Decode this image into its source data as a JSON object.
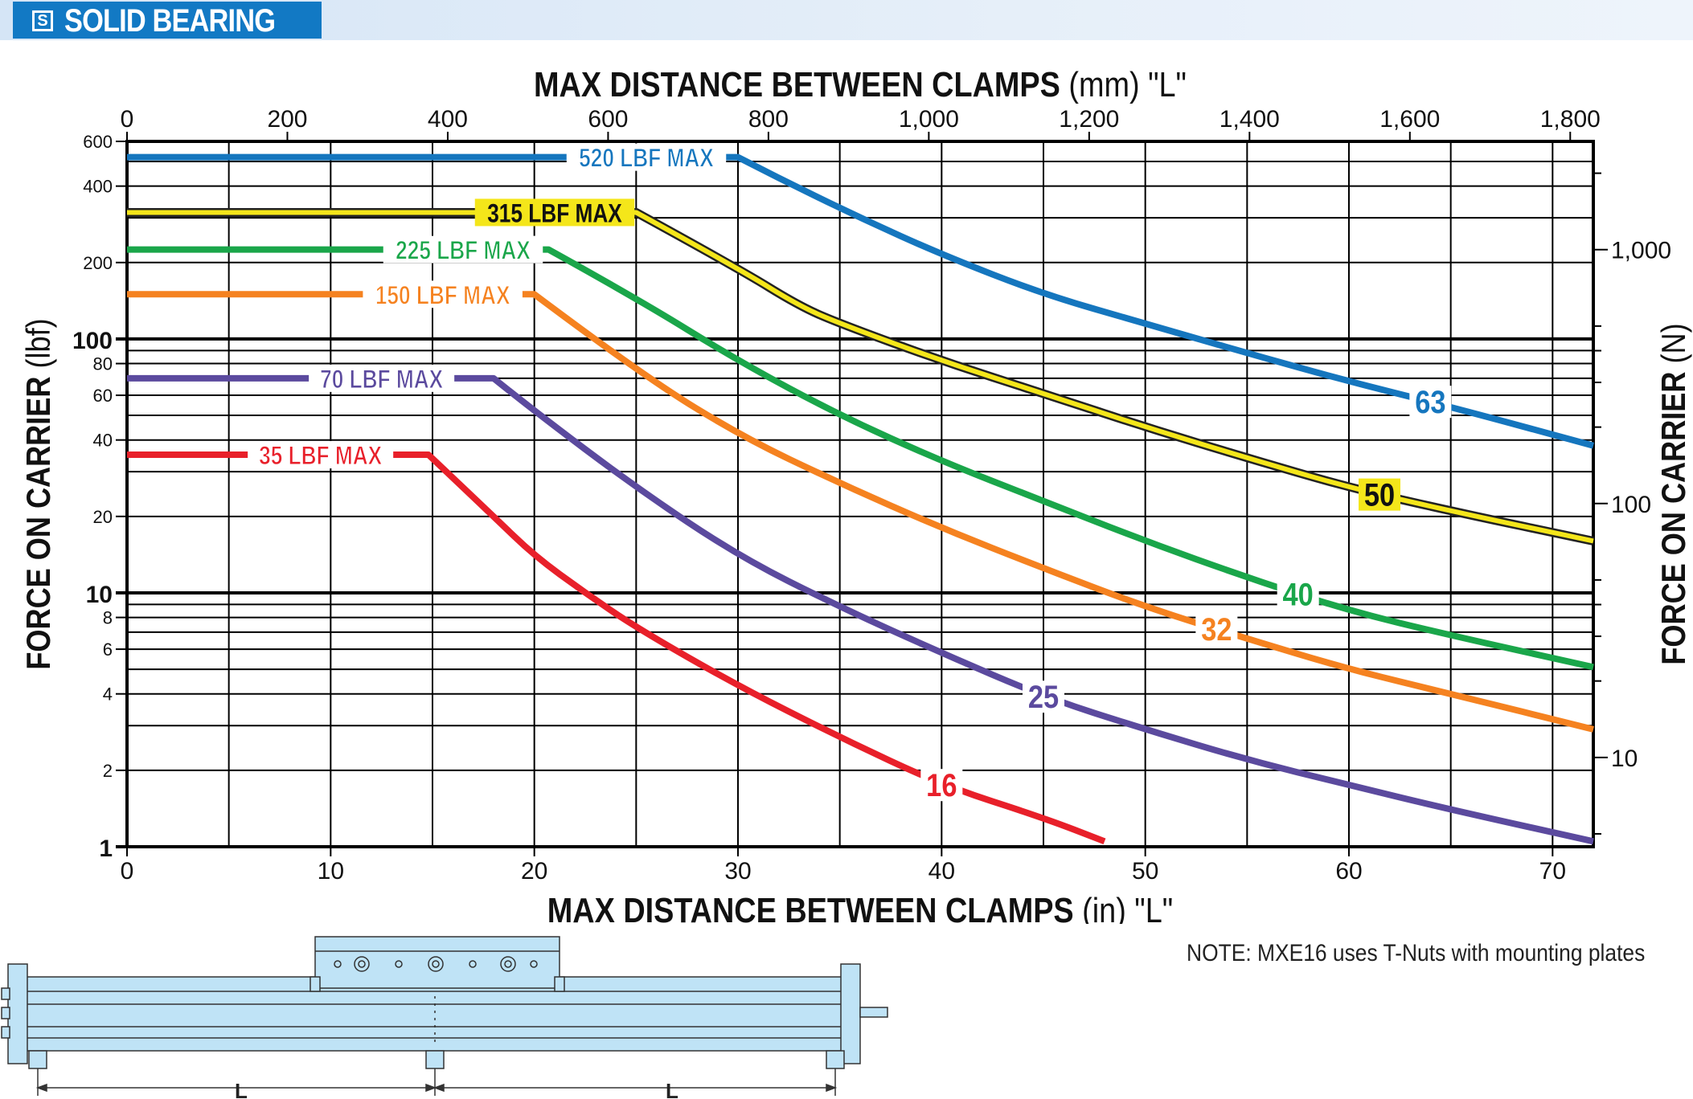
{
  "header": {
    "icon_letter": "S",
    "title": "SOLID BEARING"
  },
  "note": "NOTE: MXE16 uses T-Nuts with mounting plates",
  "illustration": {
    "dimension_label": "L"
  },
  "colors": {
    "c16": "#e8202a",
    "c25": "#5b4a9e",
    "c32": "#f58220",
    "c40": "#1aa64a",
    "c50": "#f4e61a",
    "c63": "#1576be",
    "header": "#1279c4",
    "band": "#d5e5f6",
    "rail": "#bfe3f6"
  },
  "chart_data": {
    "type": "line",
    "title": "",
    "xlabel_bold": "MAX DISTANCE BETWEEN CLAMPS",
    "xlabel_unit": " (in) \"L\"",
    "x2label_bold": "MAX DISTANCE BETWEEN CLAMPS",
    "x2label_unit": " (mm) \"L\"",
    "ylabel_bold": "FORCE ON CARRIER",
    "ylabel_unit": " (lbf)",
    "y2label_bold": "FORCE ON CARRIER",
    "y2label_unit": " (N)",
    "x_scale": "linear",
    "y_scale": "log",
    "xlim": [
      0,
      72
    ],
    "ylim": [
      1,
      600
    ],
    "x_ticks": [
      0,
      10,
      20,
      30,
      40,
      50,
      60,
      70
    ],
    "x_tick_labels": [
      "0",
      "10",
      "20",
      "30",
      "40",
      "50",
      "60",
      "70"
    ],
    "x2_ticks": [
      0,
      200,
      400,
      600,
      800,
      1000,
      1200,
      1400,
      1600,
      1800
    ],
    "x2_tick_labels": [
      "0",
      "200",
      "400",
      "600",
      "800",
      "1,000",
      "1,200",
      "1,400",
      "1,600",
      "1,800"
    ],
    "y_ticks": [
      {
        "value": 1,
        "label": "1",
        "bold": true
      },
      {
        "value": 2,
        "label": "2"
      },
      {
        "value": 4,
        "label": "4"
      },
      {
        "value": 6,
        "label": "6"
      },
      {
        "value": 8,
        "label": "8"
      },
      {
        "value": 10,
        "label": "10",
        "bold": true
      },
      {
        "value": 20,
        "label": "20"
      },
      {
        "value": 40,
        "label": "40"
      },
      {
        "value": 60,
        "label": "60"
      },
      {
        "value": 80,
        "label": "80"
      },
      {
        "value": 100,
        "label": "100",
        "bold": true
      },
      {
        "value": 200,
        "label": "200"
      },
      {
        "value": 400,
        "label": "400"
      },
      {
        "value": 600,
        "label": "600"
      }
    ],
    "y_gridlines": [
      1,
      2,
      3,
      4,
      5,
      6,
      7,
      8,
      9,
      10,
      20,
      30,
      40,
      50,
      60,
      70,
      80,
      90,
      100,
      200,
      300,
      400,
      500,
      600
    ],
    "y2_ticks": [
      {
        "value": 10,
        "label": "10"
      },
      {
        "value": 100,
        "label": "100"
      },
      {
        "value": 1000,
        "label": "1,000"
      }
    ],
    "grid": true,
    "series": [
      {
        "name": "63",
        "color_key": "c63",
        "max_label": "520 LBF MAX",
        "x": [
          0,
          30,
          32,
          36,
          40,
          45,
          50,
          55,
          60,
          65,
          72
        ],
        "y": [
          520,
          520,
          430,
          300,
          215,
          150,
          115,
          88,
          68,
          54,
          38
        ]
      },
      {
        "name": "50",
        "color_key": "c50",
        "max_label": "315 LBF MAX",
        "x": [
          0,
          25,
          30,
          33,
          35,
          40,
          45,
          50,
          55,
          60,
          65,
          72
        ],
        "y": [
          315,
          315,
          190,
          135,
          115,
          82,
          61,
          45,
          34,
          26,
          21,
          16
        ]
      },
      {
        "name": "40",
        "color_key": "c40",
        "max_label": "225 LBF MAX",
        "x": [
          0,
          20.7,
          25,
          30,
          35,
          40,
          45,
          50,
          55,
          60,
          65,
          72
        ],
        "y": [
          225,
          225,
          145,
          82,
          50,
          33,
          23,
          16,
          11.5,
          8.5,
          6.8,
          5.1
        ]
      },
      {
        "name": "32",
        "color_key": "c32",
        "max_label": "150 LBF MAX",
        "x": [
          0,
          20,
          25,
          30,
          35,
          40,
          45,
          50,
          55,
          60,
          65,
          72
        ],
        "y": [
          150,
          150,
          75,
          42,
          27,
          18,
          12.5,
          8.8,
          6.6,
          5.0,
          4.0,
          2.9
        ]
      },
      {
        "name": "25",
        "color_key": "c25",
        "max_label": "70 LBF MAX",
        "x": [
          0,
          18,
          20,
          25,
          30,
          35,
          40,
          45,
          50,
          55,
          60,
          65,
          72
        ],
        "y": [
          70,
          70,
          52,
          26,
          14,
          8.8,
          5.8,
          3.9,
          2.9,
          2.2,
          1.75,
          1.4,
          1.05
        ]
      },
      {
        "name": "16",
        "color_key": "c16",
        "max_label": "35 LBF MAX",
        "x": [
          0,
          14.8,
          18,
          20,
          22.5,
          25,
          30,
          35,
          40,
          45,
          48
        ],
        "y": [
          35,
          35,
          20,
          14,
          10,
          7.3,
          4.3,
          2.7,
          1.75,
          1.3,
          1.05
        ]
      }
    ],
    "curve_labels": [
      {
        "name": "63",
        "x": 64,
        "y": 58
      },
      {
        "name": "50",
        "x": 61.5,
        "y": 23.5
      },
      {
        "name": "40",
        "x": 57.5,
        "y": 10.5
      },
      {
        "name": "32",
        "x": 53.5,
        "y": 6.8
      },
      {
        "name": "25",
        "x": 45,
        "y": 3.6
      },
      {
        "name": "16",
        "x": 40,
        "y": 1.7
      }
    ],
    "max_label_positions": [
      {
        "name": "63",
        "x": 25.5
      },
      {
        "name": "50",
        "x": 21
      },
      {
        "name": "40",
        "x": 16.5
      },
      {
        "name": "32",
        "x": 15.5
      },
      {
        "name": "25",
        "x": 12.5
      },
      {
        "name": "16",
        "x": 9.5
      }
    ]
  }
}
